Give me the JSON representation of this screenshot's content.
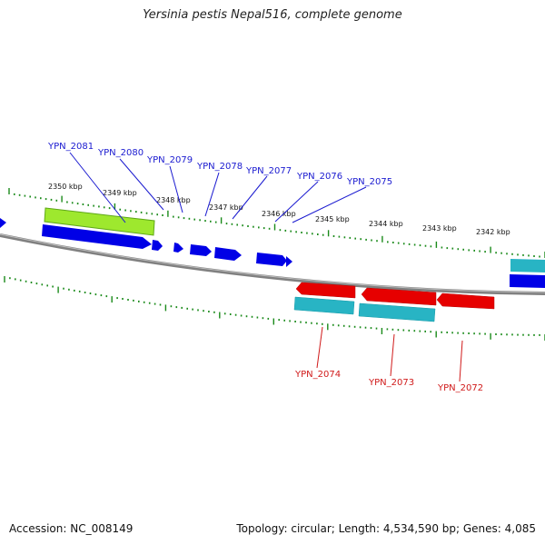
{
  "title": "Yersinia pestis Nepal516, complete genome",
  "footer": {
    "accession": "Accession: NC_008149",
    "summary": "Topology: circular; Length: 4,534,590 bp; Genes: 4,085"
  },
  "colors": {
    "forward_cds": "#0000e6",
    "reverse_cds": "#e60000",
    "forward_label": "#1a1ad0",
    "reverse_label": "#d01a1a",
    "rna_feature": "#28b4c4",
    "highlight_feature": "#9ee82e",
    "backbone": "#808080",
    "tick": "#1a8a1a"
  },
  "scale_labels": [
    "2350 kbp",
    "2349 kbp",
    "2348 kbp",
    "2347 kbp",
    "2346 kbp",
    "2345 kbp",
    "2344 kbp",
    "2343 kbp",
    "2342 kbp"
  ],
  "forward_genes": [
    "YPN_2081",
    "YPN_2080",
    "YPN_2079",
    "YPN_2078",
    "YPN_2077",
    "YPN_2076",
    "YPN_2075"
  ],
  "reverse_genes": [
    "YPN_2074",
    "YPN_2073",
    "YPN_2072"
  ]
}
